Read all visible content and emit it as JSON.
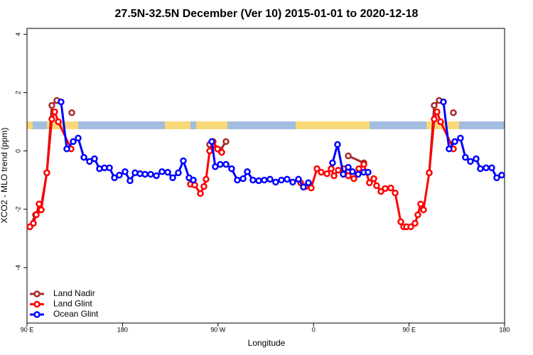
{
  "chart_data": {
    "type": "line",
    "title": "27.5N-32.5N December (Ver 10)   2015-01-01 to 2020-12-18",
    "x_label": "Longitude",
    "y_label": "XCO2 - MLO trend (ppm)",
    "xlim": [
      90,
      540
    ],
    "ylim": [
      -5.9,
      4.2
    ],
    "xticks": [
      {
        "value": 90,
        "label": "90 E"
      },
      180,
      {
        "value": 270,
        "label": "90 W"
      },
      {
        "value": 360,
        "label": "0"
      },
      {
        "value": 450,
        "label": "90 E"
      },
      {
        "value": 540,
        "label": "180"
      }
    ],
    "yticks": [
      -4,
      -2,
      0,
      2,
      4
    ],
    "legend": "bottomleft",
    "series": [
      {
        "name": "Land Nadir",
        "color": "#a52a2a",
        "x": [
          92.7,
          98.0,
          102.7,
          108.7,
          113.4,
          118.1,
          null,
          132.2,
          null,
          262.1,
          272.1,
          277.5,
          null,
          392.7,
          407.4,
          null,
          469.0,
          473.7,
          478.4,
          null,
          491.8
        ],
        "values": [
          -2.6,
          -2.19,
          -2.02,
          -0.75,
          1.56,
          1.73,
          null,
          1.31,
          null,
          0.22,
          0.02,
          0.32,
          null,
          -0.17,
          -0.41,
          null,
          -0.75,
          1.56,
          1.73,
          null,
          1.31
        ]
      },
      {
        "name": "Land Glint",
        "color": "#ff0000",
        "x": [
          92.7,
          96.0,
          98.7,
          101.4,
          103.4,
          108.7,
          113.4,
          116.1,
          119.5,
          131.5,
          null,
          244.0,
          248.0,
          253.4,
          256.7,
          258.7,
          262.1,
          265.4,
          269.5,
          273.5,
          null,
          347.8,
          352.5,
          357.8,
          363.2,
          367.2,
          372.6,
          376.6,
          379.3,
          383.3,
          388.6,
          392.7,
          398.0,
          402.7,
          407.4,
          412.7,
          416.8,
          419.4,
          423.5,
          427.5,
          432.8,
          436.9,
          442.2,
          444.9,
          447.6,
          451.6,
          455.6,
          458.3,
          460.9,
          463.6,
          469.0,
          473.7,
          476.3,
          479.7,
          491.8
        ],
        "values": [
          -2.6,
          -2.48,
          -2.19,
          -1.82,
          -2.02,
          -0.75,
          1.09,
          1.34,
          1.0,
          0.07,
          null,
          -1.14,
          -1.17,
          -1.46,
          -1.22,
          -0.97,
          0.0,
          0.32,
          0.07,
          -0.05,
          null,
          -1.09,
          -1.22,
          -1.27,
          -0.61,
          -0.73,
          -0.78,
          -0.61,
          -0.85,
          -0.66,
          -0.61,
          -0.85,
          -0.95,
          -0.61,
          -0.46,
          -1.09,
          -0.95,
          -1.19,
          -1.39,
          -1.29,
          -1.27,
          -1.44,
          -2.43,
          -2.6,
          -2.6,
          -2.6,
          -2.48,
          -2.19,
          -1.82,
          -2.02,
          -0.75,
          1.09,
          1.34,
          1.0,
          0.07
        ]
      },
      {
        "name": "Ocean Glint",
        "color": "#0000ff",
        "x": [
          122.1,
          127.5,
          133.5,
          138.2,
          143.6,
          148.9,
          153.6,
          158.3,
          163.0,
          167.7,
          172.4,
          177.0,
          182.4,
          187.1,
          191.8,
          196.5,
          201.2,
          206.5,
          211.9,
          217.2,
          222.6,
          227.3,
          232.6,
          237.3,
          242.7,
          246.7,
          null,
          264.1,
          267.4,
          272.1,
          277.5,
          282.8,
          288.2,
          293.6,
          297.6,
          302.9,
          308.3,
          313.6,
          319.0,
          324.3,
          329.7,
          335.1,
          340.4,
          345.8,
          350.5,
          355.2,
          null,
          377.9,
          382.6,
          388.0,
          392.7,
          396.7,
          402.0,
          407.4,
          411.4,
          null,
          482.4,
          487.7,
          493.1,
          498.4,
          503.1,
          507.8,
          513.2,
          517.2,
          522.6,
          527.9,
          532.6,
          537.3
        ],
        "values": [
          1.68,
          0.07,
          0.32,
          0.44,
          -0.22,
          -0.36,
          -0.27,
          -0.61,
          -0.58,
          -0.58,
          -0.92,
          -0.83,
          -0.71,
          -1.02,
          -0.75,
          -0.78,
          -0.8,
          -0.8,
          -0.85,
          -0.71,
          -0.73,
          -0.92,
          -0.75,
          -0.34,
          -0.92,
          -1.0,
          null,
          0.32,
          -0.54,
          -0.46,
          -0.46,
          -0.61,
          -1.0,
          -0.95,
          -0.71,
          -1.0,
          -1.02,
          -1.0,
          -0.97,
          -1.07,
          -1.0,
          -0.97,
          -1.07,
          -0.97,
          -1.24,
          -1.09,
          null,
          -0.41,
          0.22,
          -0.8,
          -0.56,
          -0.71,
          -0.8,
          -0.73,
          -0.73,
          null,
          1.68,
          0.07,
          0.32,
          0.44,
          -0.22,
          -0.36,
          -0.27,
          -0.61,
          -0.58,
          -0.58,
          -0.92,
          -0.83
        ]
      }
    ]
  }
}
